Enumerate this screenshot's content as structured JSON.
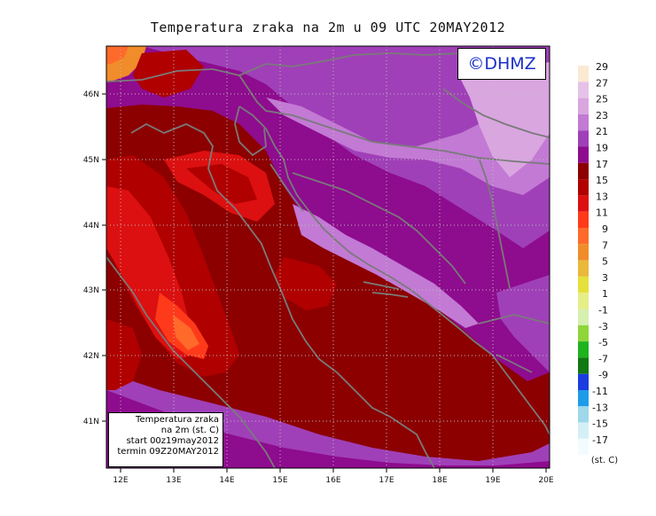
{
  "title": "Temperatura zraka na 2m u 09 UTC 20MAY2012",
  "logo_text": "©DHMZ",
  "info_box": {
    "line1": "Temperatura zraka",
    "line2": "na 2m (st. C)",
    "line3": "start 00z19may2012",
    "line4": "termin 09Z20MAY2012"
  },
  "x_ticks": [
    "12E",
    "13E",
    "14E",
    "15E",
    "16E",
    "17E",
    "18E",
    "19E",
    "20E"
  ],
  "y_ticks": [
    "46N",
    "45N",
    "44N",
    "43N",
    "42N",
    "41N"
  ],
  "legend": {
    "unit": "(st. C)",
    "levels": [
      "29",
      "27",
      "25",
      "23",
      "21",
      "19",
      "17",
      "15",
      "13",
      "11",
      "9",
      "7",
      "5",
      "3",
      "1",
      "-1",
      "-3",
      "-5",
      "-7",
      "-9",
      "-11",
      "-13",
      "-15",
      "-17"
    ],
    "colors": [
      "#fbe9d4",
      "#e6c2e8",
      "#d9a6e0",
      "#c27ad4",
      "#a040b8",
      "#8e0c8e",
      "#8c0000",
      "#b00000",
      "#dc1010",
      "#ff3a1a",
      "#ff6a2a",
      "#f08c2a",
      "#eab83a",
      "#e6e03c",
      "#e6ee88",
      "#d6f0b0",
      "#8ed63a",
      "#1eb41e",
      "#127812",
      "#1c3ce0",
      "#1c9ce8",
      "#9ed8ea",
      "#d4f0f6",
      "#f2fcfe"
    ],
    "color_meaning": "temperature bands from 29 (top, light) to -17 (bottom, very light cyan)"
  }
}
